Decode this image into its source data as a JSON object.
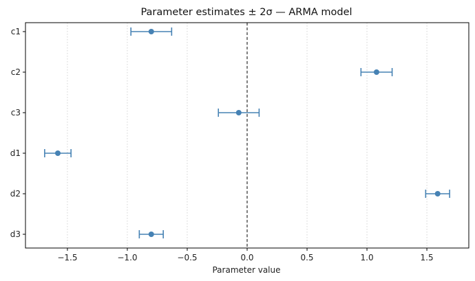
{
  "chart_data": {
    "type": "scatter",
    "title": "Parameter estimates ± 2σ  —  ARMA model",
    "xlabel": "Parameter value",
    "ylabel": "",
    "xlim": [
      -1.85,
      1.85
    ],
    "xticks": [
      -1.5,
      -1.0,
      -0.5,
      0.0,
      0.5,
      1.0,
      1.5
    ],
    "xtick_labels": [
      "−1.5",
      "−1.0",
      "−0.5",
      "0.0",
      "0.5",
      "1.0",
      "1.5"
    ],
    "categories": [
      "c1",
      "c2",
      "c3",
      "d1",
      "d2",
      "d3"
    ],
    "values": [
      -0.8,
      1.08,
      -0.07,
      -1.58,
      1.59,
      -0.8
    ],
    "error_2sigma": [
      0.17,
      0.13,
      0.17,
      0.11,
      0.1,
      0.1
    ],
    "grid": "x-dotted",
    "reference_line_x": 0.0,
    "colors": {
      "marker": "#4682b4",
      "errorbar": "#4682b4",
      "grid": "#c8c8c8",
      "zero_line": "#000000"
    }
  }
}
